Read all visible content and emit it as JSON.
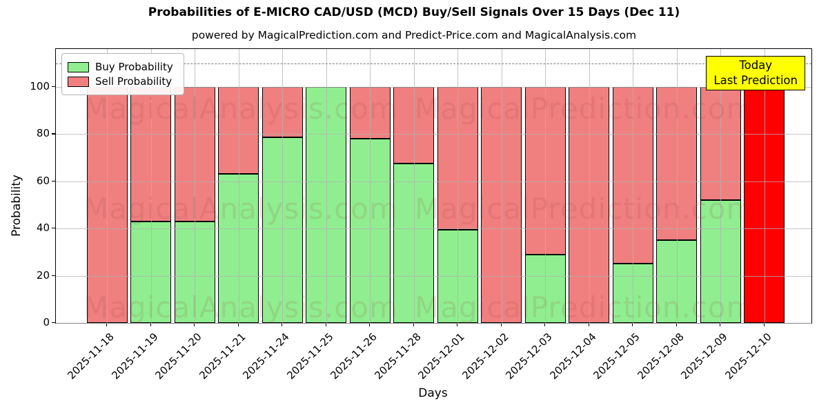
{
  "title": "Probabilities of E-MICRO CAD/USD (MCD) Buy/Sell Signals Over 15 Days (Dec 11)",
  "subtitle": "powered by MagicalPrediction.com and Predict-Price.com and MagicalAnalysis.com",
  "legend": {
    "items": [
      {
        "label": "Buy Probability",
        "color": "#90ee90"
      },
      {
        "label": "Sell Probability",
        "color": "#f08080"
      }
    ]
  },
  "annotation": {
    "line1": "Today",
    "line2": "Last Prediction",
    "bg_color": "#ffff00"
  },
  "watermarks": {
    "left_text": "MagicalAnalysis.com",
    "right_text": "MagicalPrediction.com"
  },
  "chart_data": {
    "type": "bar",
    "stacked": true,
    "title": "Probabilities of E-MICRO CAD/USD (MCD) Buy/Sell Signals Over 15 Days (Dec 11)",
    "xlabel": "Days",
    "ylabel": "Probability",
    "ylim": [
      0,
      116
    ],
    "yticks": [
      0,
      20,
      40,
      60,
      80,
      100
    ],
    "grid": true,
    "legend_position": "upper-left",
    "dashed_threshold_y": 110,
    "categories": [
      "2025-11-18",
      "2025-11-19",
      "2025-11-20",
      "2025-11-21",
      "2025-11-24",
      "2025-11-25",
      "2025-11-26",
      "2025-11-28",
      "2025-12-01",
      "2025-12-02",
      "2025-12-03",
      "2025-12-04",
      "2025-12-05",
      "2025-12-08",
      "2025-12-09",
      "2025-12-10"
    ],
    "series": [
      {
        "name": "Buy Probability",
        "color": "#90ee90",
        "values": [
          0,
          43,
          43,
          63,
          78.5,
          100,
          78,
          67.5,
          39.5,
          0,
          29,
          0,
          25,
          35,
          52,
          0
        ]
      },
      {
        "name": "Sell Probability",
        "color": "#f08080",
        "values": [
          100,
          57,
          57,
          37,
          21.5,
          0,
          22,
          32.5,
          60.5,
          100,
          71,
          100,
          75,
          65,
          48,
          100
        ]
      }
    ],
    "today_index": 15,
    "today_sell_color": "#ff0000",
    "colors": {
      "grid": "#b0b0b0",
      "bar_edge": "#000000",
      "dashed_line": "#7a7a7a"
    }
  }
}
